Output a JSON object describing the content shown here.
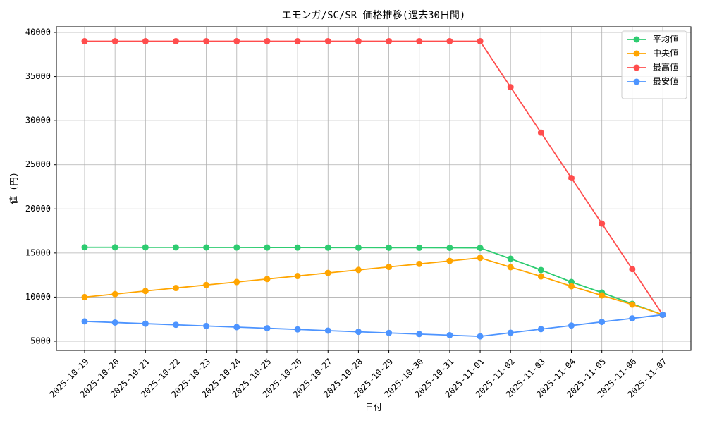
{
  "chart_data": {
    "type": "line",
    "title": "エモンガ/SC/SR 価格推移(過去30日間)",
    "x_label": "日付",
    "y_label": "値 (円)",
    "categories": [
      "2025-10-19",
      "2025-10-20",
      "2025-10-21",
      "2025-10-22",
      "2025-10-23",
      "2025-10-24",
      "2025-10-25",
      "2025-10-26",
      "2025-10-27",
      "2025-10-28",
      "2025-10-29",
      "2025-10-30",
      "2025-10-31",
      "2025-11-01",
      "2025-11-02",
      "2025-11-03",
      "2025-11-04",
      "2025-11-05",
      "2025-11-06",
      "2025-11-07"
    ],
    "series": [
      {
        "name": "平均値",
        "color": "#2ecc71",
        "values": [
          15650,
          15645,
          15640,
          15635,
          15630,
          15625,
          15620,
          15615,
          15610,
          15605,
          15600,
          15595,
          15590,
          15580,
          14350,
          13070,
          11710,
          10510,
          9230,
          8000
        ]
      },
      {
        "name": "中央値",
        "color": "#ffa500",
        "values": [
          10000,
          10340,
          10690,
          11030,
          11370,
          11710,
          12050,
          12390,
          12740,
          13080,
          13420,
          13760,
          14100,
          14450,
          13390,
          12350,
          11230,
          10190,
          9150,
          8000
        ]
      },
      {
        "name": "最高値",
        "color": "#ff4d4d",
        "values": [
          39000,
          39000,
          39000,
          39000,
          39000,
          39000,
          39000,
          39000,
          39000,
          39000,
          39000,
          39000,
          39000,
          39000,
          33800,
          28640,
          23500,
          18330,
          13170,
          8000
        ]
      },
      {
        "name": "最安値",
        "color": "#4d94ff",
        "values": [
          7250,
          7120,
          6990,
          6860,
          6730,
          6600,
          6470,
          6340,
          6200,
          6070,
          5940,
          5810,
          5680,
          5550,
          5960,
          6370,
          6780,
          7190,
          7590,
          8000
        ]
      }
    ],
    "ylim": [
      3960,
      40640
    ],
    "yticks": [
      5000,
      10000,
      15000,
      20000,
      25000,
      30000,
      35000,
      40000
    ],
    "grid": true,
    "legend": "upper-right"
  }
}
